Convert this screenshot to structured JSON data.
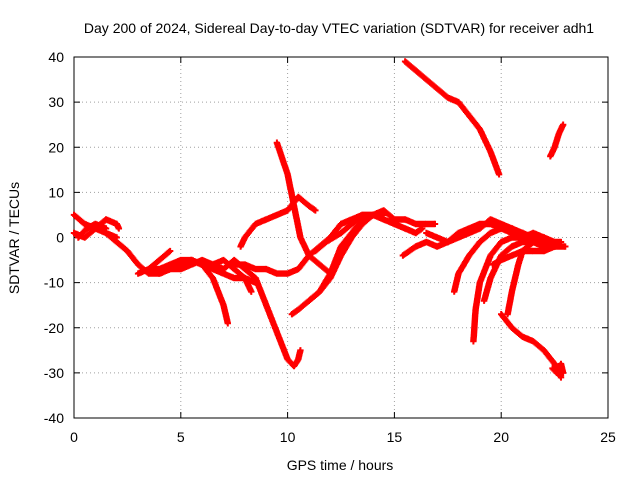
{
  "chart_data": {
    "type": "scatter",
    "title": "Day 200 of 2024, Sidereal Day-to-day VTEC variation (SDTVAR) for receiver adh1",
    "xlabel": "GPS time / hours",
    "ylabel": "SDTVAR / TECUs",
    "xlim": [
      0,
      25
    ],
    "ylim": [
      -40,
      40
    ],
    "xticks": [
      0,
      5,
      10,
      15,
      20,
      25
    ],
    "yticks": [
      -40,
      -30,
      -20,
      -10,
      0,
      10,
      20,
      30,
      40
    ],
    "grid": true,
    "marker_color": "#ff0000",
    "series": [
      {
        "points": [
          [
            0.0,
            5
          ],
          [
            0.5,
            3
          ],
          [
            1.0,
            2
          ],
          [
            1.5,
            1
          ],
          [
            2.0,
            0
          ]
        ]
      },
      {
        "points": [
          [
            0.0,
            1
          ],
          [
            0.5,
            0
          ],
          [
            1.0,
            2
          ],
          [
            1.5,
            4
          ],
          [
            2.0,
            3
          ],
          [
            2.1,
            2
          ]
        ]
      },
      {
        "points": [
          [
            0.2,
            0
          ],
          [
            0.6,
            2
          ],
          [
            1.0,
            3
          ],
          [
            1.5,
            2
          ]
        ]
      },
      {
        "points": [
          [
            1.5,
            1
          ],
          [
            2.0,
            -1
          ],
          [
            2.5,
            -3
          ],
          [
            3.0,
            -6
          ],
          [
            3.5,
            -8
          ],
          [
            4.0,
            -8
          ],
          [
            4.5,
            -7
          ],
          [
            5.0,
            -6
          ],
          [
            5.5,
            -5
          ],
          [
            6.0,
            -6
          ],
          [
            6.5,
            -7
          ],
          [
            7.0,
            -8
          ],
          [
            7.5,
            -9
          ],
          [
            8.0,
            -9
          ],
          [
            8.5,
            -10
          ]
        ]
      },
      {
        "points": [
          [
            3.0,
            -8
          ],
          [
            3.5,
            -7
          ],
          [
            4.0,
            -5
          ],
          [
            4.5,
            -3
          ]
        ]
      },
      {
        "points": [
          [
            3.5,
            -7
          ],
          [
            4.0,
            -7
          ],
          [
            4.5,
            -6
          ],
          [
            5.0,
            -5
          ],
          [
            5.5,
            -5
          ],
          [
            6.0,
            -6
          ]
        ]
      },
      {
        "points": [
          [
            4.0,
            -8
          ],
          [
            4.5,
            -7
          ],
          [
            5.0,
            -7
          ],
          [
            5.5,
            -6
          ],
          [
            6.0,
            -5
          ],
          [
            6.5,
            -6
          ],
          [
            7.0,
            -7
          ]
        ]
      },
      {
        "points": [
          [
            5.5,
            -5
          ],
          [
            6.0,
            -6
          ],
          [
            6.5,
            -9
          ],
          [
            7.0,
            -15
          ],
          [
            7.2,
            -19
          ]
        ]
      },
      {
        "points": [
          [
            6.0,
            -6
          ],
          [
            6.5,
            -6
          ],
          [
            7.0,
            -5
          ],
          [
            7.5,
            -7
          ],
          [
            8.0,
            -9
          ],
          [
            8.3,
            -12
          ]
        ]
      },
      {
        "points": [
          [
            7.0,
            -7
          ],
          [
            7.5,
            -5
          ],
          [
            8.0,
            -7
          ],
          [
            8.5,
            -9
          ],
          [
            9.0,
            -15
          ],
          [
            9.5,
            -21
          ],
          [
            10.0,
            -27
          ],
          [
            10.3,
            -28.5
          ],
          [
            10.5,
            -27
          ],
          [
            10.6,
            -25
          ]
        ]
      },
      {
        "points": [
          [
            7.5,
            -6
          ],
          [
            8.0,
            -6
          ],
          [
            8.5,
            -7
          ],
          [
            9.0,
            -7
          ],
          [
            9.5,
            -8
          ],
          [
            10.0,
            -8
          ],
          [
            10.5,
            -7
          ],
          [
            11.0,
            -4
          ],
          [
            11.5,
            -2
          ],
          [
            12.0,
            0
          ],
          [
            12.5,
            3
          ],
          [
            13.0,
            4
          ],
          [
            13.5,
            5
          ],
          [
            14.0,
            5
          ]
        ]
      },
      {
        "points": [
          [
            7.8,
            -2
          ],
          [
            8.0,
            0
          ],
          [
            8.5,
            3
          ],
          [
            9.0,
            4
          ],
          [
            9.5,
            5
          ],
          [
            10.0,
            6
          ],
          [
            10.5,
            9
          ],
          [
            11.0,
            7
          ],
          [
            11.3,
            6
          ]
        ]
      },
      {
        "points": [
          [
            9.5,
            21
          ],
          [
            10.0,
            14
          ],
          [
            10.3,
            7
          ],
          [
            10.6,
            0
          ],
          [
            11.0,
            -4
          ],
          [
            11.5,
            -6
          ],
          [
            12.0,
            -8
          ]
        ]
      },
      {
        "points": [
          [
            10.2,
            -17
          ],
          [
            10.5,
            -16
          ],
          [
            11.0,
            -14
          ],
          [
            11.5,
            -12
          ],
          [
            12.0,
            -8
          ],
          [
            12.5,
            -2
          ],
          [
            13.0,
            1
          ],
          [
            13.5,
            4
          ],
          [
            14.0,
            5
          ],
          [
            14.5,
            4
          ],
          [
            15.0,
            3
          ],
          [
            15.5,
            2
          ],
          [
            16.0,
            1
          ],
          [
            16.3,
            2
          ]
        ]
      },
      {
        "points": [
          [
            11.0,
            -14
          ],
          [
            11.5,
            -12
          ],
          [
            12.0,
            -9
          ],
          [
            12.5,
            -4
          ],
          [
            13.0,
            0
          ],
          [
            13.5,
            3
          ],
          [
            14.0,
            5
          ],
          [
            14.5,
            6
          ],
          [
            15.0,
            4
          ],
          [
            15.5,
            4
          ],
          [
            16.0,
            3
          ],
          [
            16.5,
            3
          ],
          [
            16.9,
            3
          ]
        ]
      },
      {
        "points": [
          [
            11.3,
            -3
          ],
          [
            11.8,
            -1
          ],
          [
            12.5,
            1
          ],
          [
            13.0,
            3
          ],
          [
            13.5,
            5
          ],
          [
            14.0,
            5
          ],
          [
            14.5,
            5
          ]
        ]
      },
      {
        "points": [
          [
            15.5,
            39
          ],
          [
            16.0,
            37
          ],
          [
            16.5,
            35
          ],
          [
            17.0,
            33
          ],
          [
            17.5,
            31
          ],
          [
            18.0,
            30
          ],
          [
            18.5,
            27
          ],
          [
            19.0,
            24
          ],
          [
            19.5,
            19
          ],
          [
            19.9,
            14
          ]
        ]
      },
      {
        "points": [
          [
            15.4,
            -4
          ],
          [
            16.0,
            -2
          ],
          [
            16.5,
            -1
          ],
          [
            17.0,
            -2
          ],
          [
            17.5,
            -1
          ],
          [
            18.0,
            0
          ],
          [
            18.5,
            1
          ],
          [
            19.0,
            2
          ],
          [
            19.5,
            4
          ],
          [
            20.0,
            3
          ],
          [
            20.5,
            2
          ],
          [
            21.0,
            0
          ],
          [
            21.5,
            -1
          ],
          [
            22.0,
            -1
          ],
          [
            22.5,
            -2
          ],
          [
            23.0,
            -2
          ]
        ]
      },
      {
        "points": [
          [
            16.5,
            1
          ],
          [
            17.0,
            0
          ],
          [
            17.5,
            -1
          ],
          [
            18.0,
            1
          ],
          [
            18.5,
            2
          ],
          [
            19.0,
            3
          ],
          [
            19.5,
            3
          ],
          [
            20.0,
            2
          ],
          [
            20.5,
            1
          ],
          [
            21.0,
            1
          ],
          [
            21.5,
            -1
          ],
          [
            22.0,
            -2
          ]
        ]
      },
      {
        "points": [
          [
            17.8,
            -12
          ],
          [
            18.0,
            -8
          ],
          [
            18.5,
            -4
          ],
          [
            19.0,
            -1
          ],
          [
            19.5,
            1
          ],
          [
            20.0,
            2
          ],
          [
            20.5,
            2
          ],
          [
            21.0,
            1
          ],
          [
            21.5,
            0
          ],
          [
            22.0,
            0
          ],
          [
            22.5,
            -1
          ],
          [
            22.8,
            -1
          ]
        ]
      },
      {
        "points": [
          [
            18.7,
            -23
          ],
          [
            18.8,
            -16
          ],
          [
            19.0,
            -10
          ],
          [
            19.5,
            -4
          ],
          [
            20.0,
            -1
          ],
          [
            20.5,
            0
          ],
          [
            21.0,
            0
          ],
          [
            21.5,
            1
          ],
          [
            22.0,
            0
          ]
        ]
      },
      {
        "points": [
          [
            19.2,
            -14
          ],
          [
            19.5,
            -9
          ],
          [
            20.0,
            -4
          ],
          [
            20.5,
            -2
          ],
          [
            21.0,
            -1
          ],
          [
            21.5,
            -1
          ],
          [
            22.0,
            -2
          ]
        ]
      },
      {
        "points": [
          [
            19.6,
            -6
          ],
          [
            20.0,
            -5
          ],
          [
            20.5,
            -4
          ],
          [
            21.0,
            -3
          ],
          [
            21.5,
            -3
          ],
          [
            22.0,
            -3
          ],
          [
            22.5,
            -2
          ]
        ]
      },
      {
        "points": [
          [
            20.3,
            -17
          ],
          [
            20.5,
            -12
          ],
          [
            20.8,
            -6
          ],
          [
            21.0,
            -3
          ],
          [
            21.5,
            -1
          ],
          [
            22.0,
            -1
          ],
          [
            22.5,
            -2
          ]
        ]
      },
      {
        "points": [
          [
            20.0,
            -17
          ],
          [
            20.5,
            -20
          ],
          [
            21.0,
            -22
          ],
          [
            21.5,
            -23
          ],
          [
            22.0,
            -25
          ],
          [
            22.5,
            -28
          ],
          [
            22.8,
            -31
          ]
        ]
      },
      {
        "points": [
          [
            22.4,
            -29
          ],
          [
            22.6,
            -30
          ],
          [
            22.8,
            -28
          ],
          [
            22.9,
            -30
          ]
        ]
      },
      {
        "points": [
          [
            22.3,
            18
          ],
          [
            22.5,
            20
          ],
          [
            22.7,
            23
          ],
          [
            22.9,
            25
          ]
        ]
      }
    ]
  }
}
